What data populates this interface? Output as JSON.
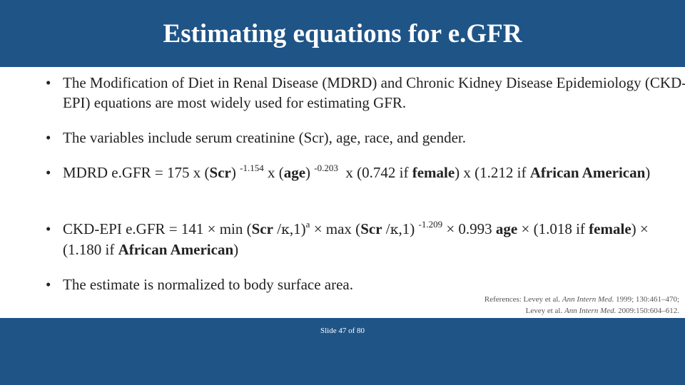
{
  "slide": {
    "title": "Estimating equations for e.GFR",
    "header_color": "#1f5487",
    "footer_color": "#1f5487"
  },
  "bullets": {
    "b1": "The Modification of Diet in Renal Disease (MDRD) and Chronic Kidney Disease Epidemiology (CKD-EPI) equations are most widely used for estimating GFR.",
    "b2": "The variables include serum creatinine (Scr), age, race, and gender.",
    "b3": {
      "t1": "MDRD e.GFR = 175 x (",
      "t2": "Scr",
      "t3": ") ",
      "e1": "-1.154",
      "t4": " x (",
      "t5": "age",
      "t6": ") ",
      "e2": "-0.203",
      "t7": "  x (0.742 if ",
      "t8": "female",
      "t9": ") x (1.212 if ",
      "t10": "African American",
      "t11": ")"
    },
    "b4": {
      "t1": "CKD-EPI e.GFR = 141 × min (",
      "t2": "Scr",
      "t3": " /",
      "k1": "κ",
      "t4": ",1)",
      "e1": "a",
      "t5": " × max (",
      "t6": "Scr",
      "t7": " /",
      "k2": "κ",
      "t8": ",1) ",
      "e2": "-1.209",
      "t9": " × 0.993 ",
      "t10": "age",
      "t11": " × (1.018 if ",
      "t12": "female",
      "t13": ") × (1.180 if ",
      "t14": "African American",
      "t15": ")"
    },
    "b5": "The estimate is normalized to body surface area."
  },
  "references": {
    "line1_prefix": "References: Levey et al. ",
    "line1_journal": "Ann Intern Med.",
    "line1_suffix": " 1999; 130:461–470;",
    "line2_prefix": "Levey et al. ",
    "line2_journal": "Ann Intern Med.",
    "line2_suffix": " 2009:150:604–612."
  },
  "footer": {
    "slide_number": "Slide 47 of 80"
  },
  "bullet_glyph": "•"
}
